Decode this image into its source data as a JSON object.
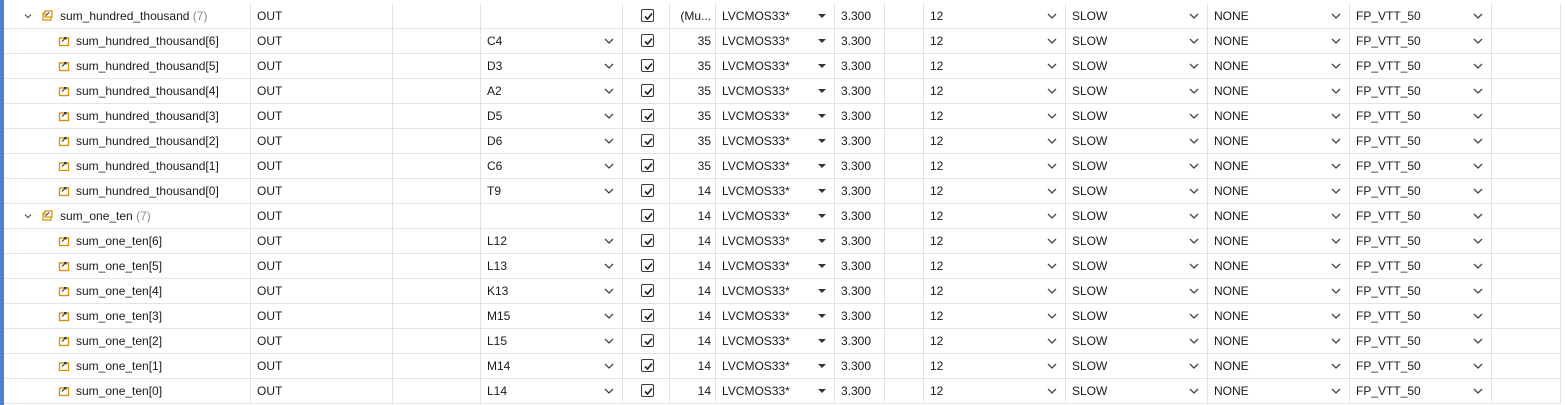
{
  "groups": [
    {
      "name": "sum_hundred_thousand",
      "count": "(7)",
      "direction": "OUT",
      "bank": "(Mu...",
      "io_std": "LVCMOS33*",
      "vcco": "3.300",
      "drive": "12",
      "slew": "SLOW",
      "pull": "NONE",
      "odt": "FP_VTT_50",
      "ports": [
        {
          "name": "sum_hundred_thousand[6]",
          "direction": "OUT",
          "site": "C4",
          "bank": "35",
          "io_std": "LVCMOS33*",
          "vcco": "3.300",
          "drive": "12",
          "slew": "SLOW",
          "pull": "NONE",
          "odt": "FP_VTT_50"
        },
        {
          "name": "sum_hundred_thousand[5]",
          "direction": "OUT",
          "site": "D3",
          "bank": "35",
          "io_std": "LVCMOS33*",
          "vcco": "3.300",
          "drive": "12",
          "slew": "SLOW",
          "pull": "NONE",
          "odt": "FP_VTT_50"
        },
        {
          "name": "sum_hundred_thousand[4]",
          "direction": "OUT",
          "site": "A2",
          "bank": "35",
          "io_std": "LVCMOS33*",
          "vcco": "3.300",
          "drive": "12",
          "slew": "SLOW",
          "pull": "NONE",
          "odt": "FP_VTT_50"
        },
        {
          "name": "sum_hundred_thousand[3]",
          "direction": "OUT",
          "site": "D5",
          "bank": "35",
          "io_std": "LVCMOS33*",
          "vcco": "3.300",
          "drive": "12",
          "slew": "SLOW",
          "pull": "NONE",
          "odt": "FP_VTT_50"
        },
        {
          "name": "sum_hundred_thousand[2]",
          "direction": "OUT",
          "site": "D6",
          "bank": "35",
          "io_std": "LVCMOS33*",
          "vcco": "3.300",
          "drive": "12",
          "slew": "SLOW",
          "pull": "NONE",
          "odt": "FP_VTT_50"
        },
        {
          "name": "sum_hundred_thousand[1]",
          "direction": "OUT",
          "site": "C6",
          "bank": "35",
          "io_std": "LVCMOS33*",
          "vcco": "3.300",
          "drive": "12",
          "slew": "SLOW",
          "pull": "NONE",
          "odt": "FP_VTT_50"
        },
        {
          "name": "sum_hundred_thousand[0]",
          "direction": "OUT",
          "site": "T9",
          "bank": "14",
          "io_std": "LVCMOS33*",
          "vcco": "3.300",
          "drive": "12",
          "slew": "SLOW",
          "pull": "NONE",
          "odt": "FP_VTT_50"
        }
      ]
    },
    {
      "name": "sum_one_ten",
      "count": "(7)",
      "direction": "OUT",
      "bank": "14",
      "io_std": "LVCMOS33*",
      "vcco": "3.300",
      "drive": "12",
      "slew": "SLOW",
      "pull": "NONE",
      "odt": "FP_VTT_50",
      "ports": [
        {
          "name": "sum_one_ten[6]",
          "direction": "OUT",
          "site": "L12",
          "bank": "14",
          "io_std": "LVCMOS33*",
          "vcco": "3.300",
          "drive": "12",
          "slew": "SLOW",
          "pull": "NONE",
          "odt": "FP_VTT_50"
        },
        {
          "name": "sum_one_ten[5]",
          "direction": "OUT",
          "site": "L13",
          "bank": "14",
          "io_std": "LVCMOS33*",
          "vcco": "3.300",
          "drive": "12",
          "slew": "SLOW",
          "pull": "NONE",
          "odt": "FP_VTT_50"
        },
        {
          "name": "sum_one_ten[4]",
          "direction": "OUT",
          "site": "K13",
          "bank": "14",
          "io_std": "LVCMOS33*",
          "vcco": "3.300",
          "drive": "12",
          "slew": "SLOW",
          "pull": "NONE",
          "odt": "FP_VTT_50"
        },
        {
          "name": "sum_one_ten[3]",
          "direction": "OUT",
          "site": "M15",
          "bank": "14",
          "io_std": "LVCMOS33*",
          "vcco": "3.300",
          "drive": "12",
          "slew": "SLOW",
          "pull": "NONE",
          "odt": "FP_VTT_50"
        },
        {
          "name": "sum_one_ten[2]",
          "direction": "OUT",
          "site": "L15",
          "bank": "14",
          "io_std": "LVCMOS33*",
          "vcco": "3.300",
          "drive": "12",
          "slew": "SLOW",
          "pull": "NONE",
          "odt": "FP_VTT_50"
        },
        {
          "name": "sum_one_ten[1]",
          "direction": "OUT",
          "site": "M14",
          "bank": "14",
          "io_std": "LVCMOS33*",
          "vcco": "3.300",
          "drive": "12",
          "slew": "SLOW",
          "pull": "NONE",
          "odt": "FP_VTT_50"
        },
        {
          "name": "sum_one_ten[0]",
          "direction": "OUT",
          "site": "L14",
          "bank": "14",
          "io_std": "LVCMOS33*",
          "vcco": "3.300",
          "drive": "12",
          "slew": "SLOW",
          "pull": "NONE",
          "odt": "FP_VTT_50"
        }
      ]
    }
  ],
  "icons": {
    "expander": "chevron-down-icon",
    "group": "bus-port-icon",
    "port": "output-port-icon",
    "fixed": "checkbox-checked-icon",
    "dropdown": "chevron-down-icon",
    "io_std_dropdown": "caret-down-icon"
  },
  "colors": {
    "accent": "#4f7fcf",
    "icon_orange": "#d8930f",
    "grid": "#e3e3e3"
  }
}
